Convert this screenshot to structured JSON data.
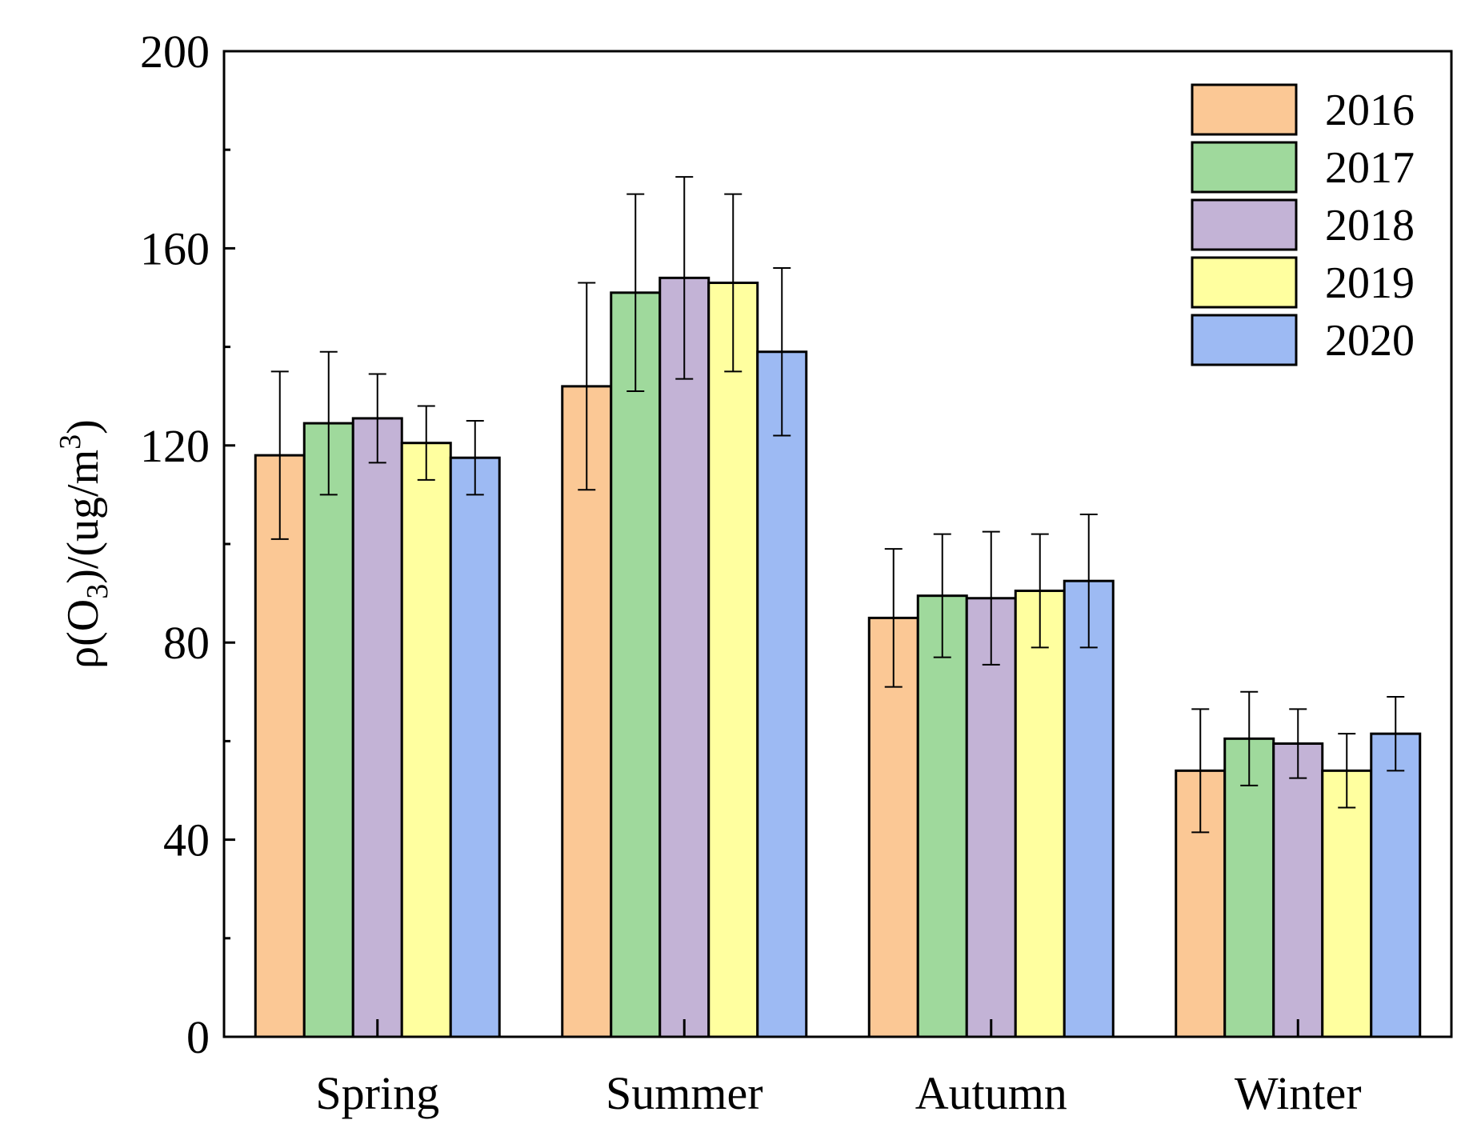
{
  "chart_data": {
    "type": "bar",
    "title": "",
    "xlabel": "",
    "ylabel": "ρ(O3)/(ug/m3)",
    "ylabel_parts": {
      "main": "ρ(O",
      "sub": "3",
      "mid": ")/(ug/m",
      "sup": "3",
      "end": ")"
    },
    "ylim": [
      0,
      200
    ],
    "yticks": [
      0,
      40,
      80,
      120,
      160,
      200
    ],
    "yticks_minor": [
      20,
      60,
      100,
      140,
      180
    ],
    "grid": false,
    "legend_position": "top-right",
    "categories": [
      "Spring",
      "Summer",
      "Autumn",
      "Winter"
    ],
    "series": [
      {
        "name": "2016",
        "color": "#fbc895",
        "values": [
          118,
          132,
          85,
          54
        ],
        "errors": [
          17,
          21,
          14,
          12.5
        ]
      },
      {
        "name": "2017",
        "color": "#9fd99c",
        "values": [
          124.5,
          151,
          89.5,
          60.5
        ],
        "errors": [
          14.5,
          20,
          12.5,
          9.5
        ]
      },
      {
        "name": "2018",
        "color": "#c3b3d6",
        "values": [
          125.5,
          154,
          89,
          59.5
        ],
        "errors": [
          9,
          20.5,
          13.5,
          7
        ]
      },
      {
        "name": "2019",
        "color": "#ffff9f",
        "values": [
          120.5,
          153,
          90.5,
          54
        ],
        "errors": [
          7.5,
          18,
          11.5,
          7.5
        ]
      },
      {
        "name": "2020",
        "color": "#9dbaf3",
        "values": [
          117.5,
          139,
          92.5,
          61.5
        ],
        "errors": [
          7.5,
          17,
          13.5,
          7.5
        ]
      }
    ]
  }
}
